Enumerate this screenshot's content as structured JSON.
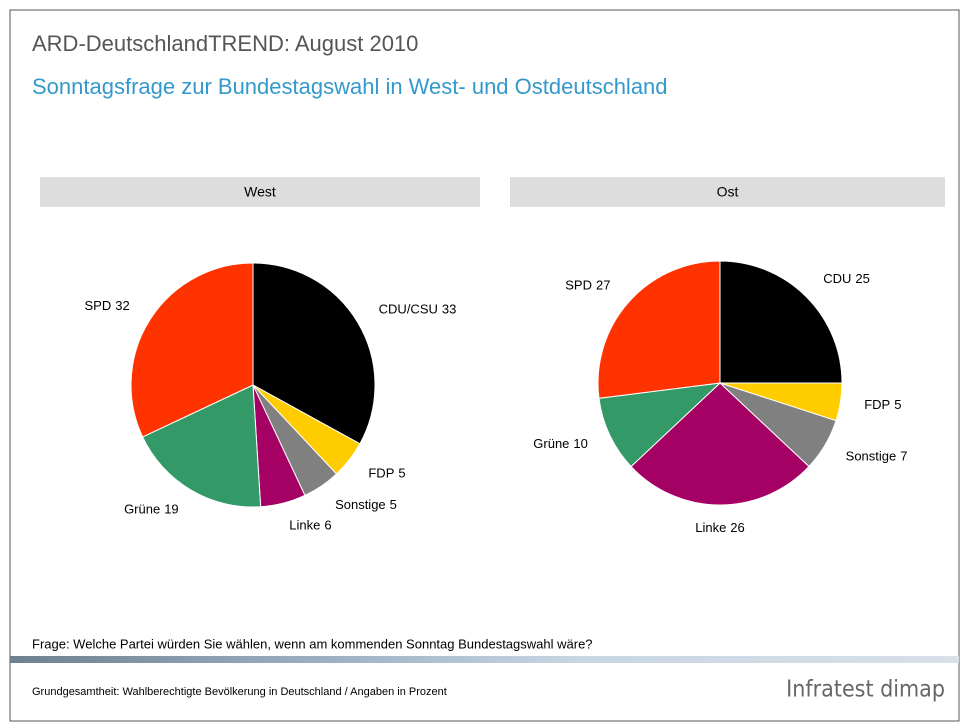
{
  "header": {
    "title": "ARD-DeutschlandTREND: August 2010",
    "subtitle": "Sonntagsfrage zur Bundestagswahl in West- und Ostdeutschland"
  },
  "chart_data": [
    {
      "type": "pie",
      "title": "West",
      "categories": [
        "CDU/CSU",
        "FDP",
        "Sonstige",
        "Linke",
        "Grüne",
        "SPD"
      ],
      "values": [
        33,
        5,
        5,
        6,
        19,
        32
      ],
      "colors": [
        "#000000",
        "#ffcc00",
        "#808080",
        "#a50064",
        "#339966",
        "#ff3300"
      ]
    },
    {
      "type": "pie",
      "title": "Ost",
      "categories": [
        "CDU",
        "FDP",
        "Sonstige",
        "Linke",
        "Grüne",
        "SPD"
      ],
      "values": [
        25,
        5,
        7,
        26,
        10,
        27
      ],
      "colors": [
        "#000000",
        "#ffcc00",
        "#808080",
        "#a50064",
        "#339966",
        "#ff3300"
      ]
    }
  ],
  "question": "Frage: Welche Partei würden Sie wählen, wenn am kommenden Sonntag Bundestagswahl wäre?",
  "footnote": "Grundgesamtheit: Wahlberechtigte Bevölkerung in Deutschland / Angaben in Prozent",
  "logo": "Infratest dimap"
}
